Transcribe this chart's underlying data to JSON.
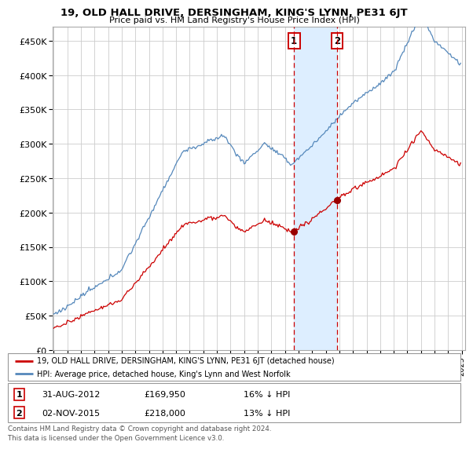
{
  "title": "19, OLD HALL DRIVE, DERSINGHAM, KING'S LYNN, PE31 6JT",
  "subtitle": "Price paid vs. HM Land Registry's House Price Index (HPI)",
  "ylim": [
    0,
    470000
  ],
  "yticks": [
    0,
    50000,
    100000,
    150000,
    200000,
    250000,
    300000,
    350000,
    400000,
    450000
  ],
  "ytick_labels": [
    "£0",
    "£50K",
    "£100K",
    "£150K",
    "£200K",
    "£250K",
    "£300K",
    "£350K",
    "£400K",
    "£450K"
  ],
  "sale1_year": 2012.667,
  "sale1_price": 169950,
  "sale2_year": 2015.833,
  "sale2_price": 218000,
  "line_color_property": "#cc0000",
  "line_color_hpi": "#5588bb",
  "shaded_region_color": "#ddeeff",
  "legend_text_property": "19, OLD HALL DRIVE, DERSINGHAM, KING'S LYNN, PE31 6JT (detached house)",
  "legend_text_hpi": "HPI: Average price, detached house, King's Lynn and West Norfolk",
  "sale1_date": "31-AUG-2012",
  "sale2_date": "02-NOV-2015",
  "sale1_hpi_diff": "16% ↓ HPI",
  "sale2_hpi_diff": "13% ↓ HPI",
  "footer": "Contains HM Land Registry data © Crown copyright and database right 2024.\nThis data is licensed under the Open Government Licence v3.0.",
  "background_color": "#ffffff",
  "grid_color": "#cccccc"
}
